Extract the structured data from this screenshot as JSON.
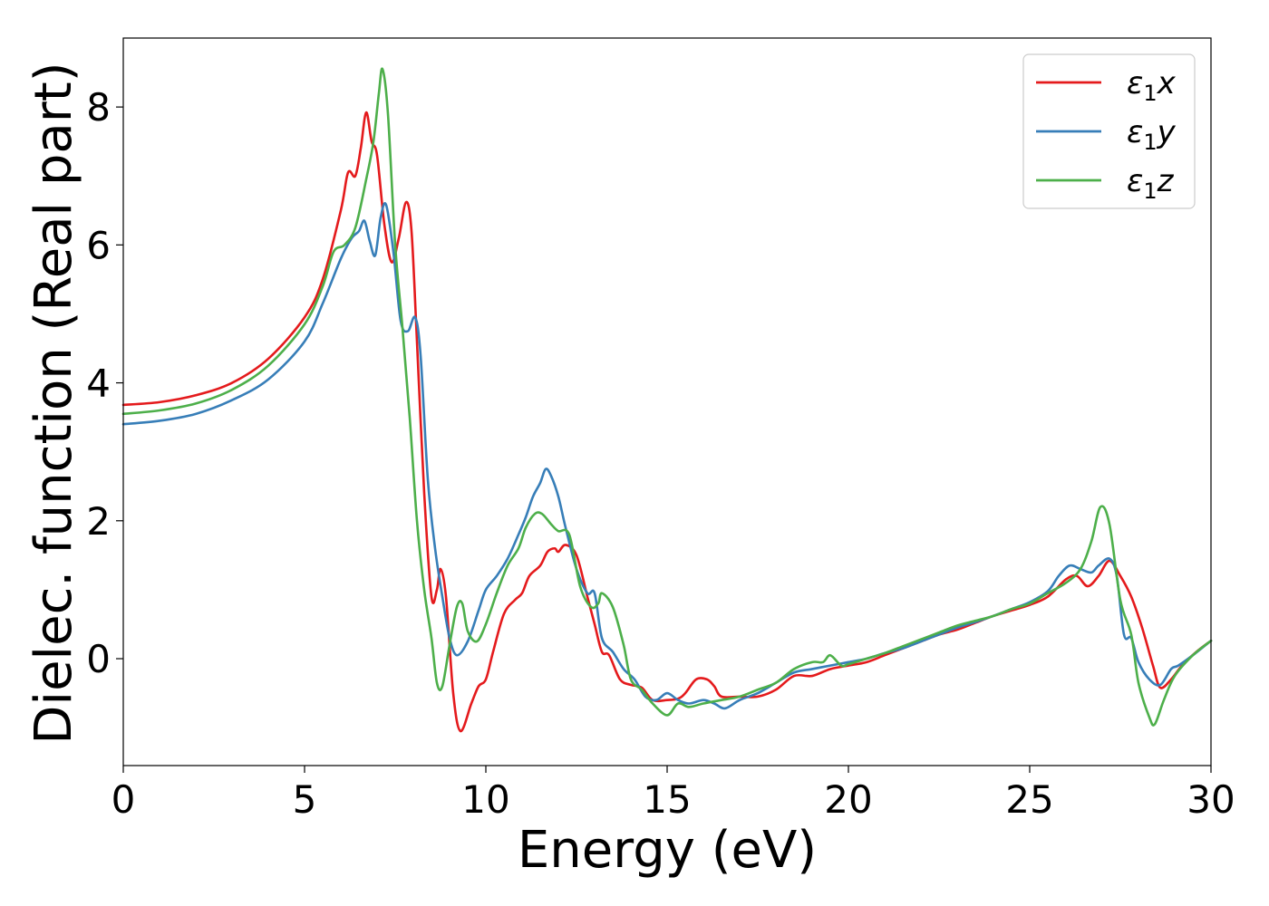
{
  "chart_data": {
    "type": "line",
    "xlabel": "Energy (eV)",
    "ylabel": "Dielec. function (Real part)",
    "xlim": [
      0,
      30
    ],
    "ylim": [
      -1.55,
      9.0
    ],
    "xticks": [
      0,
      5,
      10,
      15,
      20,
      25,
      30
    ],
    "yticks": [
      0,
      2,
      4,
      6,
      8
    ],
    "grid": false,
    "legend_position": "top-right",
    "series": [
      {
        "name": "ε₁x",
        "legend_base": "ε",
        "legend_sub": "1",
        "legend_var": "x",
        "color": "#e41a1c",
        "points": [
          [
            0,
            3.68
          ],
          [
            1,
            3.72
          ],
          [
            2,
            3.82
          ],
          [
            3,
            4.0
          ],
          [
            4,
            4.35
          ],
          [
            5,
            4.95
          ],
          [
            5.5,
            5.5
          ],
          [
            6,
            6.5
          ],
          [
            6.2,
            7.05
          ],
          [
            6.4,
            7.0
          ],
          [
            6.55,
            7.4
          ],
          [
            6.7,
            7.92
          ],
          [
            6.85,
            7.5
          ],
          [
            7.0,
            7.3
          ],
          [
            7.2,
            6.3
          ],
          [
            7.4,
            5.75
          ],
          [
            7.6,
            6.1
          ],
          [
            7.8,
            6.62
          ],
          [
            7.95,
            6.2
          ],
          [
            8.1,
            4.6
          ],
          [
            8.3,
            2.4
          ],
          [
            8.5,
            0.9
          ],
          [
            8.65,
            1.0
          ],
          [
            8.75,
            1.3
          ],
          [
            8.9,
            0.9
          ],
          [
            9.1,
            -0.5
          ],
          [
            9.3,
            -1.05
          ],
          [
            9.6,
            -0.65
          ],
          [
            9.8,
            -0.4
          ],
          [
            10.0,
            -0.3
          ],
          [
            10.2,
            0.1
          ],
          [
            10.5,
            0.65
          ],
          [
            10.8,
            0.85
          ],
          [
            11.0,
            0.95
          ],
          [
            11.2,
            1.2
          ],
          [
            11.5,
            1.35
          ],
          [
            11.7,
            1.55
          ],
          [
            11.9,
            1.6
          ],
          [
            12.0,
            1.55
          ],
          [
            12.2,
            1.65
          ],
          [
            12.5,
            1.5
          ],
          [
            12.8,
            0.9
          ],
          [
            13.0,
            0.5
          ],
          [
            13.2,
            0.1
          ],
          [
            13.4,
            0.05
          ],
          [
            13.7,
            -0.3
          ],
          [
            14.0,
            -0.38
          ],
          [
            14.3,
            -0.42
          ],
          [
            14.6,
            -0.6
          ],
          [
            15.0,
            -0.6
          ],
          [
            15.3,
            -0.58
          ],
          [
            15.5,
            -0.5
          ],
          [
            15.8,
            -0.3
          ],
          [
            16.1,
            -0.3
          ],
          [
            16.3,
            -0.4
          ],
          [
            16.5,
            -0.55
          ],
          [
            17.0,
            -0.55
          ],
          [
            17.5,
            -0.55
          ],
          [
            18.0,
            -0.45
          ],
          [
            18.5,
            -0.25
          ],
          [
            19.0,
            -0.25
          ],
          [
            19.5,
            -0.15
          ],
          [
            20.0,
            -0.1
          ],
          [
            20.5,
            -0.05
          ],
          [
            21.0,
            0.05
          ],
          [
            21.5,
            0.15
          ],
          [
            22.0,
            0.25
          ],
          [
            22.5,
            0.35
          ],
          [
            23.0,
            0.42
          ],
          [
            23.5,
            0.52
          ],
          [
            24.0,
            0.62
          ],
          [
            24.5,
            0.7
          ],
          [
            25.0,
            0.78
          ],
          [
            25.5,
            0.9
          ],
          [
            26.0,
            1.15
          ],
          [
            26.3,
            1.2
          ],
          [
            26.6,
            1.05
          ],
          [
            26.9,
            1.2
          ],
          [
            27.2,
            1.42
          ],
          [
            27.5,
            1.2
          ],
          [
            27.8,
            0.9
          ],
          [
            28.1,
            0.45
          ],
          [
            28.4,
            -0.1
          ],
          [
            28.6,
            -0.42
          ],
          [
            28.9,
            -0.3
          ],
          [
            29.2,
            -0.1
          ],
          [
            29.6,
            0.1
          ],
          [
            30.0,
            0.26
          ]
        ]
      },
      {
        "name": "ε₁y",
        "legend_base": "ε",
        "legend_sub": "1",
        "legend_var": "y",
        "color": "#377eb8",
        "points": [
          [
            0,
            3.4
          ],
          [
            1,
            3.45
          ],
          [
            2,
            3.55
          ],
          [
            3,
            3.75
          ],
          [
            4,
            4.05
          ],
          [
            5,
            4.6
          ],
          [
            5.5,
            5.15
          ],
          [
            6,
            5.8
          ],
          [
            6.3,
            6.1
          ],
          [
            6.5,
            6.2
          ],
          [
            6.65,
            6.35
          ],
          [
            6.8,
            6.05
          ],
          [
            6.95,
            5.85
          ],
          [
            7.1,
            6.4
          ],
          [
            7.25,
            6.58
          ],
          [
            7.45,
            5.9
          ],
          [
            7.65,
            4.9
          ],
          [
            7.85,
            4.75
          ],
          [
            8.05,
            4.95
          ],
          [
            8.2,
            4.4
          ],
          [
            8.4,
            2.6
          ],
          [
            8.6,
            1.6
          ],
          [
            8.8,
            0.9
          ],
          [
            9.0,
            0.3
          ],
          [
            9.2,
            0.05
          ],
          [
            9.5,
            0.25
          ],
          [
            9.8,
            0.7
          ],
          [
            10.0,
            1.0
          ],
          [
            10.3,
            1.2
          ],
          [
            10.6,
            1.45
          ],
          [
            10.9,
            1.8
          ],
          [
            11.1,
            2.05
          ],
          [
            11.3,
            2.35
          ],
          [
            11.5,
            2.55
          ],
          [
            11.65,
            2.75
          ],
          [
            11.8,
            2.65
          ],
          [
            12.0,
            2.35
          ],
          [
            12.2,
            1.9
          ],
          [
            12.5,
            1.3
          ],
          [
            12.8,
            0.95
          ],
          [
            13.0,
            0.95
          ],
          [
            13.2,
            0.3
          ],
          [
            13.5,
            0.1
          ],
          [
            13.8,
            -0.15
          ],
          [
            14.1,
            -0.3
          ],
          [
            14.4,
            -0.55
          ],
          [
            14.7,
            -0.6
          ],
          [
            15.0,
            -0.5
          ],
          [
            15.3,
            -0.6
          ],
          [
            15.6,
            -0.65
          ],
          [
            16.0,
            -0.6
          ],
          [
            16.3,
            -0.65
          ],
          [
            16.6,
            -0.72
          ],
          [
            17.0,
            -0.6
          ],
          [
            17.5,
            -0.5
          ],
          [
            18.0,
            -0.35
          ],
          [
            18.5,
            -0.2
          ],
          [
            19.0,
            -0.15
          ],
          [
            19.5,
            -0.1
          ],
          [
            20.0,
            -0.05
          ],
          [
            20.5,
            0.0
          ],
          [
            21.0,
            0.08
          ],
          [
            21.5,
            0.15
          ],
          [
            22.0,
            0.25
          ],
          [
            22.5,
            0.35
          ],
          [
            23.0,
            0.45
          ],
          [
            23.5,
            0.53
          ],
          [
            24.0,
            0.62
          ],
          [
            24.5,
            0.72
          ],
          [
            25.0,
            0.82
          ],
          [
            25.5,
            0.98
          ],
          [
            25.8,
            1.2
          ],
          [
            26.1,
            1.35
          ],
          [
            26.4,
            1.3
          ],
          [
            26.7,
            1.25
          ],
          [
            26.9,
            1.35
          ],
          [
            27.2,
            1.45
          ],
          [
            27.4,
            1.2
          ],
          [
            27.6,
            0.35
          ],
          [
            27.8,
            0.3
          ],
          [
            28.0,
            -0.05
          ],
          [
            28.3,
            -0.3
          ],
          [
            28.6,
            -0.38
          ],
          [
            28.9,
            -0.15
          ],
          [
            29.1,
            -0.1
          ],
          [
            29.5,
            0.05
          ],
          [
            30.0,
            0.26
          ]
        ]
      },
      {
        "name": "ε₁z",
        "legend_base": "ε",
        "legend_sub": "1",
        "legend_var": "z",
        "color": "#4daf4a",
        "points": [
          [
            0,
            3.55
          ],
          [
            1,
            3.6
          ],
          [
            2,
            3.7
          ],
          [
            3,
            3.9
          ],
          [
            4,
            4.25
          ],
          [
            5,
            4.85
          ],
          [
            5.5,
            5.4
          ],
          [
            5.8,
            5.9
          ],
          [
            6.1,
            6.0
          ],
          [
            6.4,
            6.25
          ],
          [
            6.7,
            6.95
          ],
          [
            6.9,
            7.5
          ],
          [
            7.05,
            8.2
          ],
          [
            7.15,
            8.55
          ],
          [
            7.3,
            7.9
          ],
          [
            7.5,
            6.0
          ],
          [
            7.7,
            4.8
          ],
          [
            7.9,
            3.5
          ],
          [
            8.1,
            2.0
          ],
          [
            8.3,
            1.0
          ],
          [
            8.5,
            0.3
          ],
          [
            8.65,
            -0.35
          ],
          [
            8.8,
            -0.4
          ],
          [
            9.0,
            0.2
          ],
          [
            9.2,
            0.75
          ],
          [
            9.35,
            0.8
          ],
          [
            9.5,
            0.4
          ],
          [
            9.75,
            0.25
          ],
          [
            10.0,
            0.5
          ],
          [
            10.3,
            0.95
          ],
          [
            10.6,
            1.35
          ],
          [
            10.9,
            1.6
          ],
          [
            11.1,
            1.9
          ],
          [
            11.35,
            2.1
          ],
          [
            11.55,
            2.1
          ],
          [
            11.8,
            1.95
          ],
          [
            12.0,
            1.85
          ],
          [
            12.3,
            1.8
          ],
          [
            12.6,
            1.05
          ],
          [
            12.9,
            0.75
          ],
          [
            13.1,
            0.8
          ],
          [
            13.2,
            0.95
          ],
          [
            13.5,
            0.75
          ],
          [
            13.8,
            0.2
          ],
          [
            14.0,
            -0.3
          ],
          [
            14.3,
            -0.45
          ],
          [
            14.6,
            -0.65
          ],
          [
            15.0,
            -0.82
          ],
          [
            15.3,
            -0.65
          ],
          [
            15.6,
            -0.7
          ],
          [
            16.0,
            -0.65
          ],
          [
            16.5,
            -0.6
          ],
          [
            17.0,
            -0.55
          ],
          [
            17.5,
            -0.45
          ],
          [
            18.0,
            -0.35
          ],
          [
            18.5,
            -0.15
          ],
          [
            19.0,
            -0.05
          ],
          [
            19.3,
            -0.05
          ],
          [
            19.5,
            0.05
          ],
          [
            19.8,
            -0.1
          ],
          [
            20.0,
            -0.08
          ],
          [
            20.5,
            0.0
          ],
          [
            21.0,
            0.08
          ],
          [
            21.5,
            0.18
          ],
          [
            22.0,
            0.28
          ],
          [
            22.5,
            0.38
          ],
          [
            23.0,
            0.48
          ],
          [
            23.5,
            0.55
          ],
          [
            24.0,
            0.62
          ],
          [
            24.5,
            0.72
          ],
          [
            25.0,
            0.8
          ],
          [
            25.5,
            0.95
          ],
          [
            26.0,
            1.1
          ],
          [
            26.4,
            1.3
          ],
          [
            26.7,
            1.7
          ],
          [
            26.95,
            2.2
          ],
          [
            27.2,
            1.95
          ],
          [
            27.5,
            0.85
          ],
          [
            27.8,
            0.35
          ],
          [
            28.0,
            -0.35
          ],
          [
            28.3,
            -0.85
          ],
          [
            28.45,
            -0.95
          ],
          [
            28.7,
            -0.6
          ],
          [
            29.0,
            -0.25
          ],
          [
            29.5,
            0.05
          ],
          [
            30.0,
            0.26
          ]
        ]
      }
    ]
  }
}
